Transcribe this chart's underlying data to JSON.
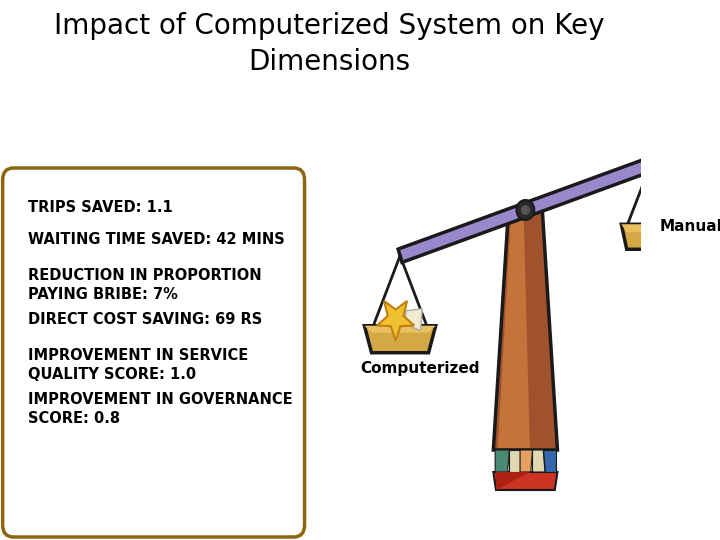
{
  "title": "Impact of Computerized System on Key\nDimensions",
  "title_fontsize": 20,
  "bg_color": "#ffffff",
  "box_lines": [
    "TRIPS SAVED: 1.1",
    "WAITING TIME SAVED: 42 MINS",
    "REDUCTION IN PROPORTION\nPAYING BRIBE: 7%",
    "DIRECT COST SAVING: 69 RS",
    "IMPROVEMENT IN SERVICE\nQUALITY SCORE: 1.0",
    "IMPROVEMENT IN GOVERNANCE\nSCORE: 0.8"
  ],
  "box_color": "#8B6510",
  "box_bg": "#ffffff",
  "text_color": "#000000",
  "text_fontsize": 10.5,
  "label_computerized": "Computerized",
  "label_manual": "Manual",
  "pole_color": "#A0522D",
  "pole_edge": "#1a1a1a",
  "beam_color": "#9988cc",
  "pan_color": "#d4a843",
  "pan_edge": "#1a1a1a"
}
